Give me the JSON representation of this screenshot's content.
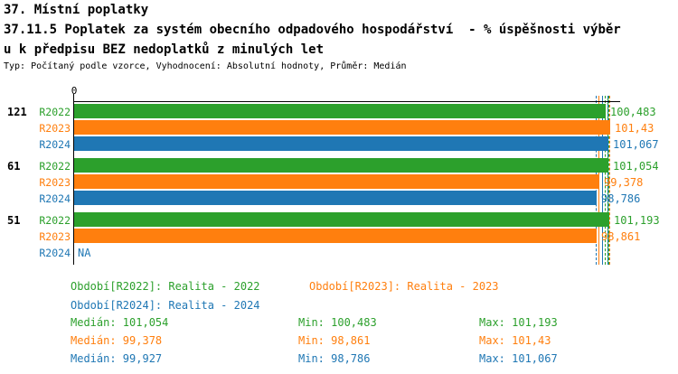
{
  "header": {
    "line1": "37. Místní poplatky",
    "line2": "37.11.5 Poplatek za systém obecního odpadového hospodářství  - % úspěšnosti výběr",
    "line3": "u k předpisu BEZ nedoplatků z minulých let",
    "meta": "Typ: Počítaný podle vzorce, Vyhodnocení: Absolutní hodnoty, Průměr: Medián"
  },
  "colors": {
    "r2022_green": "#2ca02c",
    "r2023_orange": "#ff7f0e",
    "r2024_blue": "#1f77b4",
    "axis_black": "#000000"
  },
  "chart": {
    "zero_label": "0",
    "na_text": "NA",
    "groups": [
      {
        "label": "121",
        "rows": [
          {
            "series": "R2022",
            "value": 100.483,
            "value_label": "100,483"
          },
          {
            "series": "R2023",
            "value": 101.43,
            "value_label": "101,43"
          },
          {
            "series": "R2024",
            "value": 101.067,
            "value_label": "101,067"
          }
        ]
      },
      {
        "label": "61",
        "rows": [
          {
            "series": "R2022",
            "value": 101.054,
            "value_label": "101,054"
          },
          {
            "series": "R2023",
            "value": 99.378,
            "value_label": "99,378"
          },
          {
            "series": "R2024",
            "value": 98.786,
            "value_label": "98,786"
          }
        ]
      },
      {
        "label": "51",
        "rows": [
          {
            "series": "R2022",
            "value": 101.193,
            "value_label": "101,193"
          },
          {
            "series": "R2023",
            "value": 98.861,
            "value_label": "98,861"
          },
          {
            "series": "R2024",
            "value": null,
            "value_label": "NA"
          }
        ]
      }
    ]
  },
  "legend": {
    "periods": [
      {
        "series": "R2022",
        "label": "Období[R2022]: Realita - 2022",
        "color": "#2ca02c"
      },
      {
        "series": "R2023",
        "label": "Období[R2023]: Realita - 2023",
        "color": "#ff7f0e"
      },
      {
        "series": "R2024",
        "label": "Období[R2024]: Realita - 2024",
        "color": "#1f77b4"
      }
    ],
    "stats": [
      {
        "series": "R2022",
        "color": "#2ca02c",
        "median_label": "Medián: 101,054",
        "min_label": "Min: 100,483",
        "max_label": "Max: 101,193"
      },
      {
        "series": "R2023",
        "color": "#ff7f0e",
        "median_label": "Medián: 99,378",
        "min_label": "Min: 98,861",
        "max_label": "Max: 101,43"
      },
      {
        "series": "R2024",
        "color": "#1f77b4",
        "median_label": "Medián: 99,927",
        "min_label": "Min: 98,786",
        "max_label": "Max: 101,067"
      }
    ]
  },
  "chart_data": {
    "type": "bar",
    "orientation": "horizontal",
    "title": "37.11.5 Poplatek za systém obecního odpadového hospodářství - % úspěšnosti výběru k předpisu BEZ nedoplatků z minulých let",
    "subtitle": "Typ: Počítaný podle vzorce, Vyhodnocení: Absolutní hodnoty, Průměr: Medián",
    "categories": [
      "121",
      "61",
      "51"
    ],
    "series": [
      {
        "name": "R2022",
        "legend": "Období[R2022]: Realita - 2022",
        "color": "#2ca02c",
        "values": [
          100.483,
          101.054,
          101.193
        ],
        "min": 100.483,
        "median": 101.054,
        "max": 101.193
      },
      {
        "name": "R2023",
        "legend": "Období[R2023]: Realita - 2023",
        "color": "#ff7f0e",
        "values": [
          101.43,
          99.378,
          98.861
        ],
        "min": 98.861,
        "median": 99.378,
        "max": 101.43
      },
      {
        "name": "R2024",
        "legend": "Období[R2024]: Realita - 2024",
        "color": "#1f77b4",
        "values": [
          101.067,
          98.786,
          null
        ],
        "min": 98.786,
        "median": 99.927,
        "max": 101.067
      }
    ],
    "value_axis": {
      "zero_label": "0",
      "min": 0
    },
    "grid": false,
    "legend_position": "bottom",
    "marker_lines": "min/median/max per series"
  }
}
